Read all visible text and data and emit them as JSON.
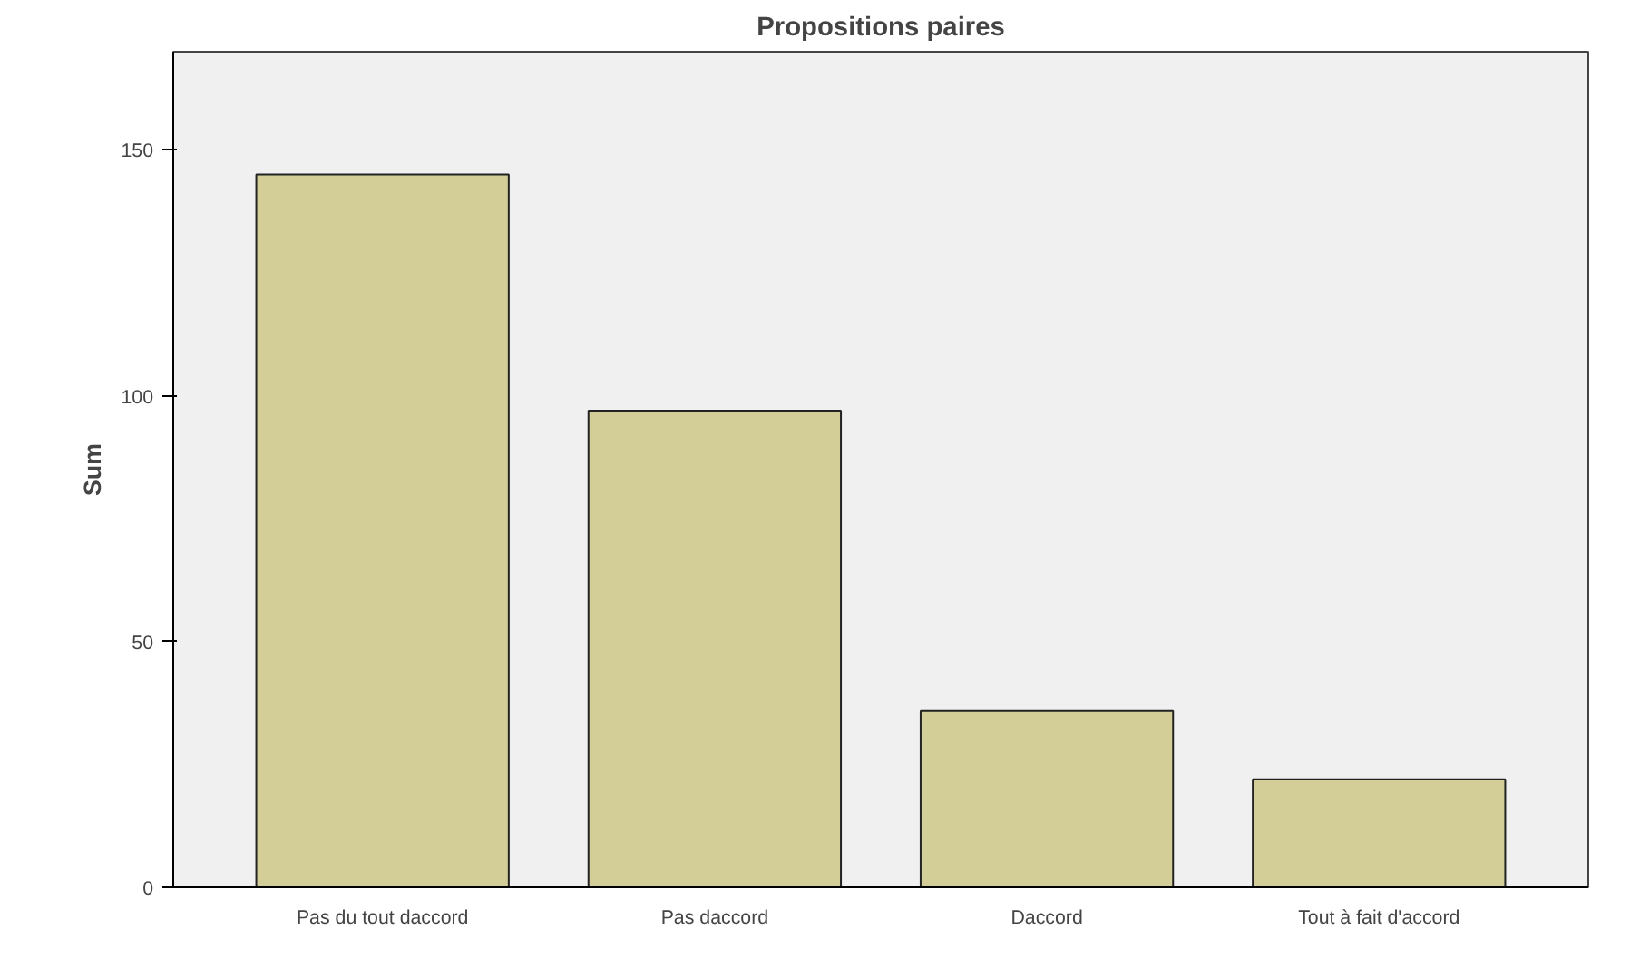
{
  "chart_data": {
    "type": "bar",
    "title": "Propositions paires",
    "ylabel": "Sum",
    "categories": [
      "Pas du tout daccord",
      "Pas daccord",
      "Daccord",
      "Tout à fait d'accord"
    ],
    "values": [
      145,
      97,
      36,
      22
    ],
    "color": "#d3ce97",
    "ylim": [
      0,
      170
    ],
    "yticks": [
      0,
      50,
      100,
      150
    ],
    "grid": false
  }
}
